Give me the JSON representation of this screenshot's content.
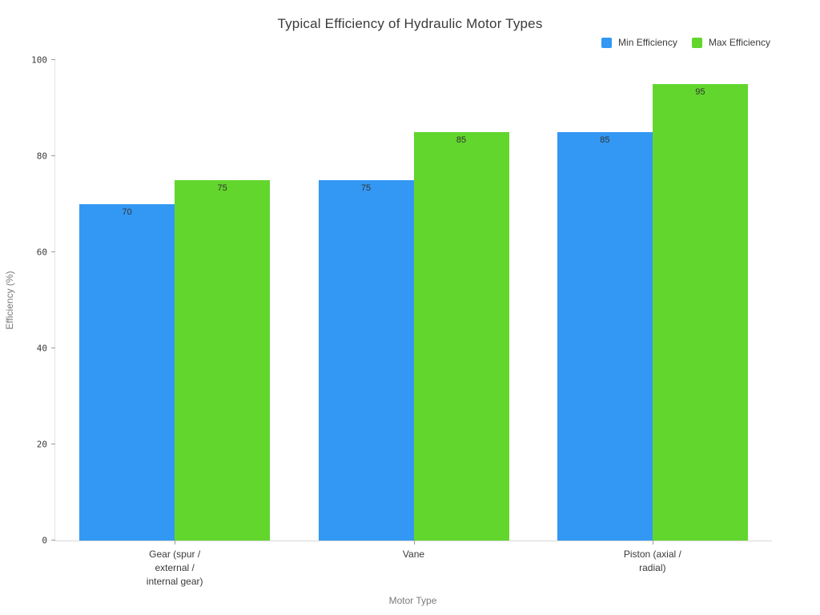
{
  "title": "Typical Efficiency of Hydraulic Motor Types",
  "legend": {
    "items": [
      {
        "label": "Min Efficiency",
        "color": "#3398f3"
      },
      {
        "label": "Max Efficiency",
        "color": "#62d62c"
      }
    ]
  },
  "axes": {
    "x_title": "Motor Type",
    "y_title": "Efficiency (%)",
    "y_ticks": [
      0,
      20,
      40,
      60,
      80,
      100
    ]
  },
  "chart_data": {
    "type": "bar",
    "categories": [
      "Gear (spur /\nexternal /\ninternal gear)",
      "Vane",
      "Piston (axial /\nradial)"
    ],
    "series": [
      {
        "name": "Min Efficiency",
        "color": "#3398f3",
        "values": [
          70,
          75,
          85
        ]
      },
      {
        "name": "Max Efficiency",
        "color": "#62d62c",
        "values": [
          75,
          85,
          95
        ]
      }
    ],
    "title": "Typical Efficiency of Hydraulic Motor Types",
    "xlabel": "Motor Type",
    "ylabel": "Efficiency (%)",
    "ylim": [
      0,
      100
    ],
    "y_tick_step": 20,
    "grid": false,
    "legend_position": "top-right",
    "bar_value_labels": "inside-top"
  }
}
